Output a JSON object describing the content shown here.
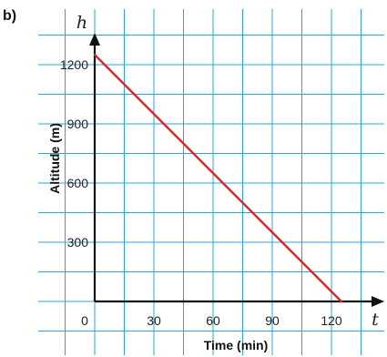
{
  "part_label": "b)",
  "chart_data": {
    "type": "line",
    "xlabel": "Time (min)",
    "ylabel": "Altitude (m)",
    "x_axis_var": "t",
    "y_axis_var": "h",
    "origin_label": "0",
    "x_ticks": [
      "30",
      "60",
      "90",
      "120"
    ],
    "y_ticks": [
      "300",
      "600",
      "900",
      "1200"
    ],
    "xlim": [
      -27,
      150
    ],
    "ylim": [
      -150,
      1500
    ],
    "grid": true,
    "series": [
      {
        "x": [
          0,
          125
        ],
        "y": [
          1250,
          0
        ]
      }
    ],
    "colors": {
      "grid": "#2aa5dc",
      "line": "#d7262b",
      "axis": "#111111"
    }
  }
}
